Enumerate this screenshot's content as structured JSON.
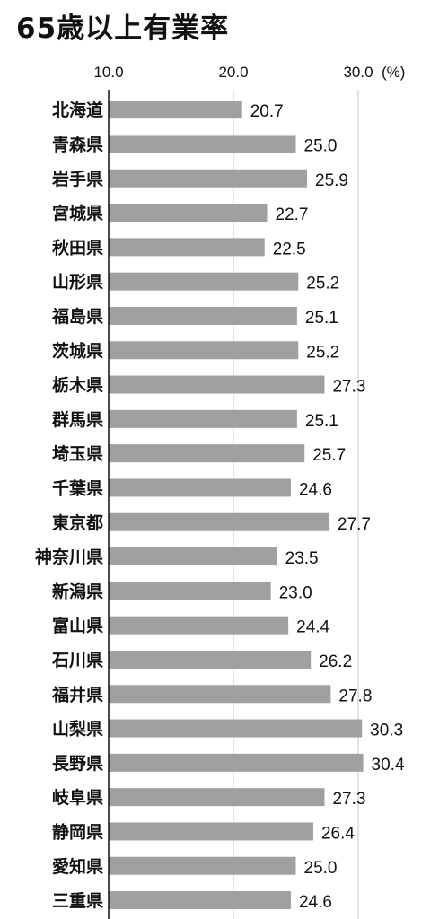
{
  "chart_data": {
    "type": "bar",
    "orientation": "horizontal",
    "title": "65歳以上有業率",
    "unit": "(%)",
    "xlim": [
      10.0,
      35.0
    ],
    "ticks": [
      "10.0",
      "20.0",
      "30.0"
    ],
    "tick_values": [
      10,
      20,
      30
    ],
    "grid": true,
    "bar_color": "#a0a0a0",
    "categories": [
      "北海道",
      "青森県",
      "岩手県",
      "宮城県",
      "秋田県",
      "山形県",
      "福島県",
      "茨城県",
      "栃木県",
      "群馬県",
      "埼玉県",
      "千葉県",
      "東京都",
      "神奈川県",
      "新潟県",
      "富山県",
      "石川県",
      "福井県",
      "山梨県",
      "長野県",
      "岐阜県",
      "静岡県",
      "愛知県",
      "三重県"
    ],
    "values": [
      20.7,
      25.0,
      25.9,
      22.7,
      22.5,
      25.2,
      25.1,
      25.2,
      27.3,
      25.1,
      25.7,
      24.6,
      27.7,
      23.5,
      23.0,
      24.4,
      26.2,
      27.8,
      30.3,
      30.4,
      27.3,
      26.4,
      25.0,
      24.6
    ],
    "value_labels": [
      "20.7",
      "25.0",
      "25.9",
      "22.7",
      "22.5",
      "25.2",
      "25.1",
      "25.2",
      "27.3",
      "25.1",
      "25.7",
      "24.6",
      "27.7",
      "23.5",
      "23.0",
      "24.4",
      "26.2",
      "27.8",
      "30.3",
      "30.4",
      "27.3",
      "26.4",
      "25.0",
      "24.6"
    ]
  }
}
